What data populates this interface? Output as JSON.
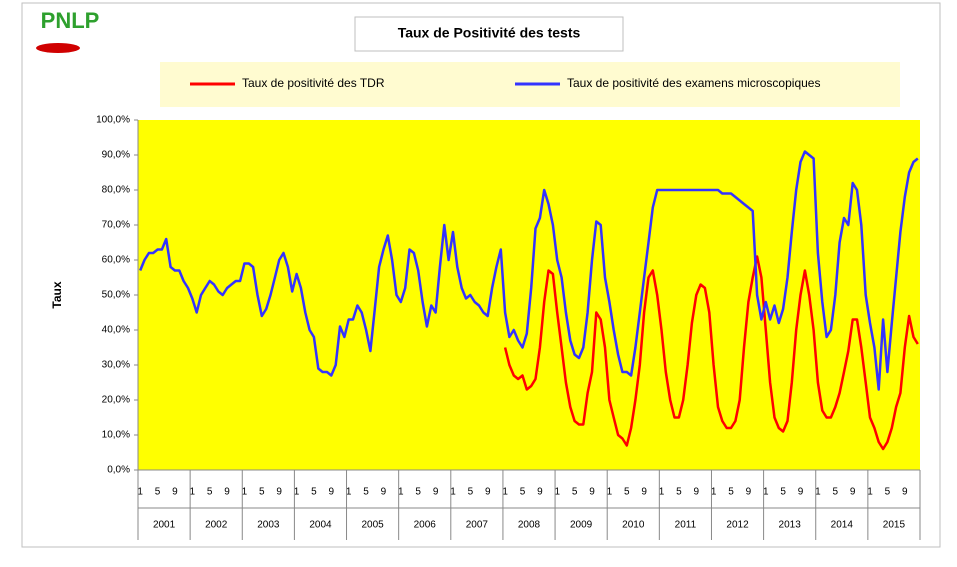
{
  "chart_data": {
    "type": "line",
    "logo": "PNLP",
    "title": "Taux de Positivité des tests",
    "ylabel": "Taux",
    "categories": [
      "1",
      null,
      null,
      null,
      "5",
      null,
      null,
      null,
      "9",
      null,
      null,
      null,
      "1",
      null,
      null,
      null,
      "5",
      null,
      null,
      null,
      "9",
      null,
      null,
      null,
      "1",
      null,
      null,
      null,
      "5",
      null,
      null,
      null,
      "9",
      null,
      null,
      null,
      "1",
      null,
      null,
      null,
      "5",
      null,
      null,
      null,
      "9",
      null,
      null,
      null,
      "1",
      null,
      null,
      null,
      "5",
      null,
      null,
      null,
      "9",
      null,
      null,
      null,
      "1",
      null,
      null,
      null,
      "5",
      null,
      null,
      null,
      "9",
      null,
      null,
      null,
      "1",
      null,
      null,
      null,
      "5",
      null,
      null,
      null,
      "9",
      null,
      null,
      null,
      "1",
      null,
      null,
      null,
      "5",
      null,
      null,
      null,
      "9",
      null,
      null,
      null,
      "1",
      null,
      null,
      null,
      "5",
      null,
      null,
      null,
      "9",
      null,
      null,
      null,
      "1",
      null,
      null,
      null,
      "5",
      null,
      null,
      null,
      "9",
      null,
      null,
      null,
      "1",
      null,
      null,
      null,
      "5",
      null,
      null,
      null,
      "9",
      null,
      null,
      null,
      "1",
      null,
      null,
      null,
      "5",
      null,
      null,
      null,
      "9",
      null,
      null,
      null,
      "1",
      null,
      null,
      null,
      "5",
      null,
      null,
      null,
      "9",
      null,
      null,
      null,
      "1",
      null,
      null,
      null,
      "5",
      null,
      null,
      null,
      "9",
      null,
      null,
      null,
      "1",
      null,
      null,
      null,
      "5",
      null,
      null,
      null,
      "9",
      null,
      null,
      null
    ],
    "years": [
      "2001",
      "2002",
      "2003",
      "2004",
      "2005",
      "2006",
      "2007",
      "2008",
      "2009",
      "2010",
      "2011",
      "2012",
      "2013",
      "2014",
      "2015"
    ],
    "series": [
      {
        "name": "Taux de positivité des TDR",
        "color": "#ff0000",
        "values": [
          null,
          null,
          null,
          null,
          null,
          null,
          null,
          null,
          null,
          null,
          null,
          null,
          null,
          null,
          null,
          null,
          null,
          null,
          null,
          null,
          null,
          null,
          null,
          null,
          null,
          null,
          null,
          null,
          null,
          null,
          null,
          null,
          null,
          null,
          null,
          null,
          null,
          null,
          null,
          null,
          null,
          null,
          null,
          null,
          null,
          null,
          null,
          null,
          null,
          null,
          null,
          null,
          null,
          null,
          null,
          null,
          null,
          null,
          null,
          null,
          null,
          null,
          null,
          null,
          null,
          null,
          null,
          null,
          null,
          null,
          null,
          null,
          null,
          null,
          null,
          null,
          null,
          null,
          null,
          null,
          null,
          null,
          null,
          null,
          35,
          30,
          27,
          26,
          27,
          23,
          24,
          26,
          35,
          48,
          57,
          56,
          45,
          35,
          25,
          18,
          14,
          13,
          13,
          22,
          28,
          45,
          43,
          35,
          20,
          15,
          10,
          9,
          7,
          12,
          20,
          30,
          45,
          55,
          57,
          50,
          40,
          28,
          20,
          15,
          15,
          20,
          30,
          42,
          50,
          53,
          52,
          45,
          30,
          18,
          14,
          12,
          12,
          14,
          20,
          35,
          48,
          55,
          61,
          55,
          40,
          25,
          15,
          12,
          11,
          14,
          25,
          40,
          50,
          57,
          50,
          40,
          25,
          17,
          15,
          15,
          18,
          22,
          28,
          34,
          43,
          43,
          35,
          25,
          15,
          12,
          8,
          6,
          8,
          12,
          18,
          22,
          35,
          44,
          38,
          36
        ]
      },
      {
        "name": "Taux de positivité des examens microscopiques",
        "color": "#3333ff",
        "values": [
          57,
          60,
          62,
          62,
          63,
          63,
          66,
          58,
          57,
          57,
          54,
          52,
          49,
          45,
          50,
          52,
          54,
          53,
          51,
          50,
          52,
          53,
          54,
          54,
          59,
          59,
          58,
          50,
          44,
          46,
          50,
          55,
          60,
          62,
          58,
          51,
          56,
          52,
          45,
          40,
          38,
          29,
          28,
          28,
          27,
          30,
          41,
          38,
          43,
          43,
          47,
          45,
          40,
          34,
          46,
          58,
          63,
          67,
          60,
          50,
          48,
          52,
          63,
          62,
          57,
          48,
          41,
          47,
          45,
          58,
          70,
          60,
          68,
          58,
          52,
          49,
          50,
          48,
          47,
          45,
          44,
          52,
          58,
          63,
          45,
          38,
          40,
          37,
          35,
          39,
          52,
          69,
          72,
          80,
          76,
          70,
          60,
          55,
          45,
          37,
          33,
          32,
          35,
          45,
          60,
          71,
          70,
          55,
          48,
          40,
          33,
          28,
          28,
          27,
          35,
          45,
          55,
          65,
          75,
          80,
          80,
          80,
          80,
          80,
          80,
          80,
          80,
          80,
          80,
          80,
          80,
          80,
          80,
          80,
          79,
          79,
          79,
          78,
          77,
          76,
          75,
          74,
          50,
          43,
          48,
          43,
          47,
          42,
          46,
          55,
          68,
          80,
          88,
          91,
          90,
          89,
          62,
          48,
          38,
          40,
          50,
          65,
          72,
          70,
          82,
          80,
          70,
          50,
          42,
          35,
          23,
          43,
          28,
          42,
          55,
          68,
          78,
          85,
          88,
          89
        ]
      }
    ],
    "ylim": [
      0,
      100
    ],
    "yticks": [
      {
        "value": 0,
        "label": "0,0%"
      },
      {
        "value": 10,
        "label": "10,0%"
      },
      {
        "value": 20,
        "label": "20,0%"
      },
      {
        "value": 30,
        "label": "30,0%"
      },
      {
        "value": 40,
        "label": "40,0%"
      },
      {
        "value": 50,
        "label": "50,0%"
      },
      {
        "value": 60,
        "label": "60,0%"
      },
      {
        "value": 70,
        "label": "70,0%"
      },
      {
        "value": 80,
        "label": "80,0%"
      },
      {
        "value": 90,
        "label": "90,0%"
      },
      {
        "value": 100,
        "label": "100,0%"
      }
    ],
    "plot_background": "#ffff00",
    "legend_position": "top"
  }
}
